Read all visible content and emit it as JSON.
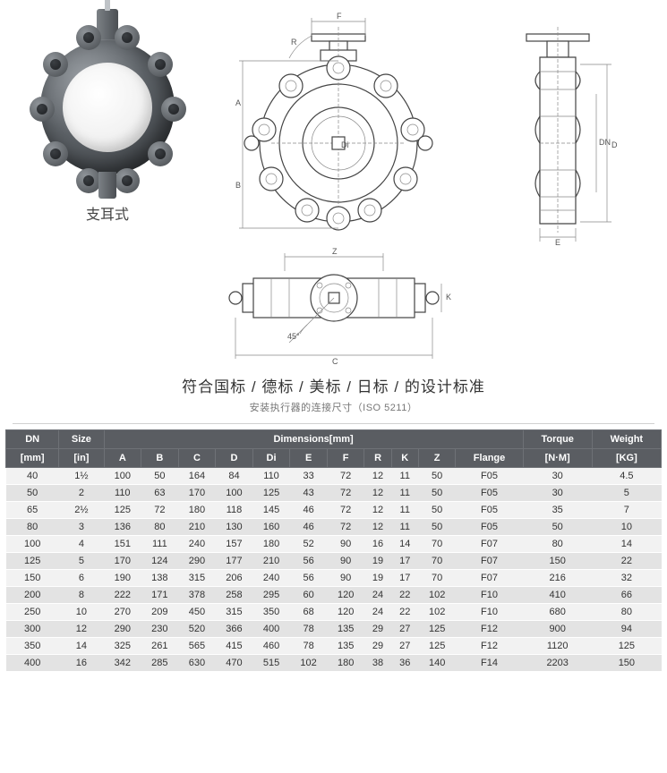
{
  "caption3d": "支耳式",
  "heading_main": "符合国标 / 德标 / 美标 / 日标 / 的设计标准",
  "heading_sub": "安装执行器的连接尺寸（ISO 5211）",
  "dims": {
    "F": "F",
    "R": "R",
    "A": "A",
    "B": "B",
    "Di": "Di",
    "D": "D",
    "DN": "DN",
    "E": "E",
    "Z": "Z",
    "K": "K",
    "C": "C",
    "angle": "45°"
  },
  "table": {
    "header_bg": "#5a5d62",
    "header_fg": "#ffffff",
    "row_odd_bg": "#f2f2f2",
    "row_even_bg": "#e3e3e3",
    "group_dn": "DN",
    "group_size": "Size",
    "group_dims": "Dimensions[mm]",
    "group_torque": "Torque",
    "group_weight": "Weight",
    "unit_mm": "[mm]",
    "unit_in": "[in]",
    "unit_nm": "[N·M]",
    "unit_kg": "[KG]",
    "cols": [
      "A",
      "B",
      "C",
      "D",
      "Di",
      "E",
      "F",
      "R",
      "K",
      "Z",
      "Flange"
    ],
    "rows": [
      {
        "dn": "40",
        "size": "1½",
        "A": "100",
        "B": "50",
        "C": "164",
        "D": "84",
        "Di": "110",
        "E": "33",
        "F": "72",
        "R": "12",
        "K": "11",
        "Z": "50",
        "Flange": "F05",
        "Torque": "30",
        "Weight": "4.5"
      },
      {
        "dn": "50",
        "size": "2",
        "A": "110",
        "B": "63",
        "C": "170",
        "D": "100",
        "Di": "125",
        "E": "43",
        "F": "72",
        "R": "12",
        "K": "11",
        "Z": "50",
        "Flange": "F05",
        "Torque": "30",
        "Weight": "5"
      },
      {
        "dn": "65",
        "size": "2½",
        "A": "125",
        "B": "72",
        "C": "180",
        "D": "118",
        "Di": "145",
        "E": "46",
        "F": "72",
        "R": "12",
        "K": "11",
        "Z": "50",
        "Flange": "F05",
        "Torque": "35",
        "Weight": "7"
      },
      {
        "dn": "80",
        "size": "3",
        "A": "136",
        "B": "80",
        "C": "210",
        "D": "130",
        "Di": "160",
        "E": "46",
        "F": "72",
        "R": "12",
        "K": "11",
        "Z": "50",
        "Flange": "F05",
        "Torque": "50",
        "Weight": "10"
      },
      {
        "dn": "100",
        "size": "4",
        "A": "151",
        "B": "111",
        "C": "240",
        "D": "157",
        "Di": "180",
        "E": "52",
        "F": "90",
        "R": "16",
        "K": "14",
        "Z": "70",
        "Flange": "F07",
        "Torque": "80",
        "Weight": "14"
      },
      {
        "dn": "125",
        "size": "5",
        "A": "170",
        "B": "124",
        "C": "290",
        "D": "177",
        "Di": "210",
        "E": "56",
        "F": "90",
        "R": "19",
        "K": "17",
        "Z": "70",
        "Flange": "F07",
        "Torque": "150",
        "Weight": "22"
      },
      {
        "dn": "150",
        "size": "6",
        "A": "190",
        "B": "138",
        "C": "315",
        "D": "206",
        "Di": "240",
        "E": "56",
        "F": "90",
        "R": "19",
        "K": "17",
        "Z": "70",
        "Flange": "F07",
        "Torque": "216",
        "Weight": "32"
      },
      {
        "dn": "200",
        "size": "8",
        "A": "222",
        "B": "171",
        "C": "378",
        "D": "258",
        "Di": "295",
        "E": "60",
        "F": "120",
        "R": "24",
        "K": "22",
        "Z": "102",
        "Flange": "F10",
        "Torque": "410",
        "Weight": "66"
      },
      {
        "dn": "250",
        "size": "10",
        "A": "270",
        "B": "209",
        "C": "450",
        "D": "315",
        "Di": "350",
        "E": "68",
        "F": "120",
        "R": "24",
        "K": "22",
        "Z": "102",
        "Flange": "F10",
        "Torque": "680",
        "Weight": "80"
      },
      {
        "dn": "300",
        "size": "12",
        "A": "290",
        "B": "230",
        "C": "520",
        "D": "366",
        "Di": "400",
        "E": "78",
        "F": "135",
        "R": "29",
        "K": "27",
        "Z": "125",
        "Flange": "F12",
        "Torque": "900",
        "Weight": "94"
      },
      {
        "dn": "350",
        "size": "14",
        "A": "325",
        "B": "261",
        "C": "565",
        "D": "415",
        "Di": "460",
        "E": "78",
        "F": "135",
        "R": "29",
        "K": "27",
        "Z": "125",
        "Flange": "F12",
        "Torque": "1120",
        "Weight": "125"
      },
      {
        "dn": "400",
        "size": "16",
        "A": "342",
        "B": "285",
        "C": "630",
        "D": "470",
        "Di": "515",
        "E": "102",
        "F": "180",
        "R": "38",
        "K": "36",
        "Z": "140",
        "Flange": "F14",
        "Torque": "2203",
        "Weight": "150"
      }
    ]
  }
}
